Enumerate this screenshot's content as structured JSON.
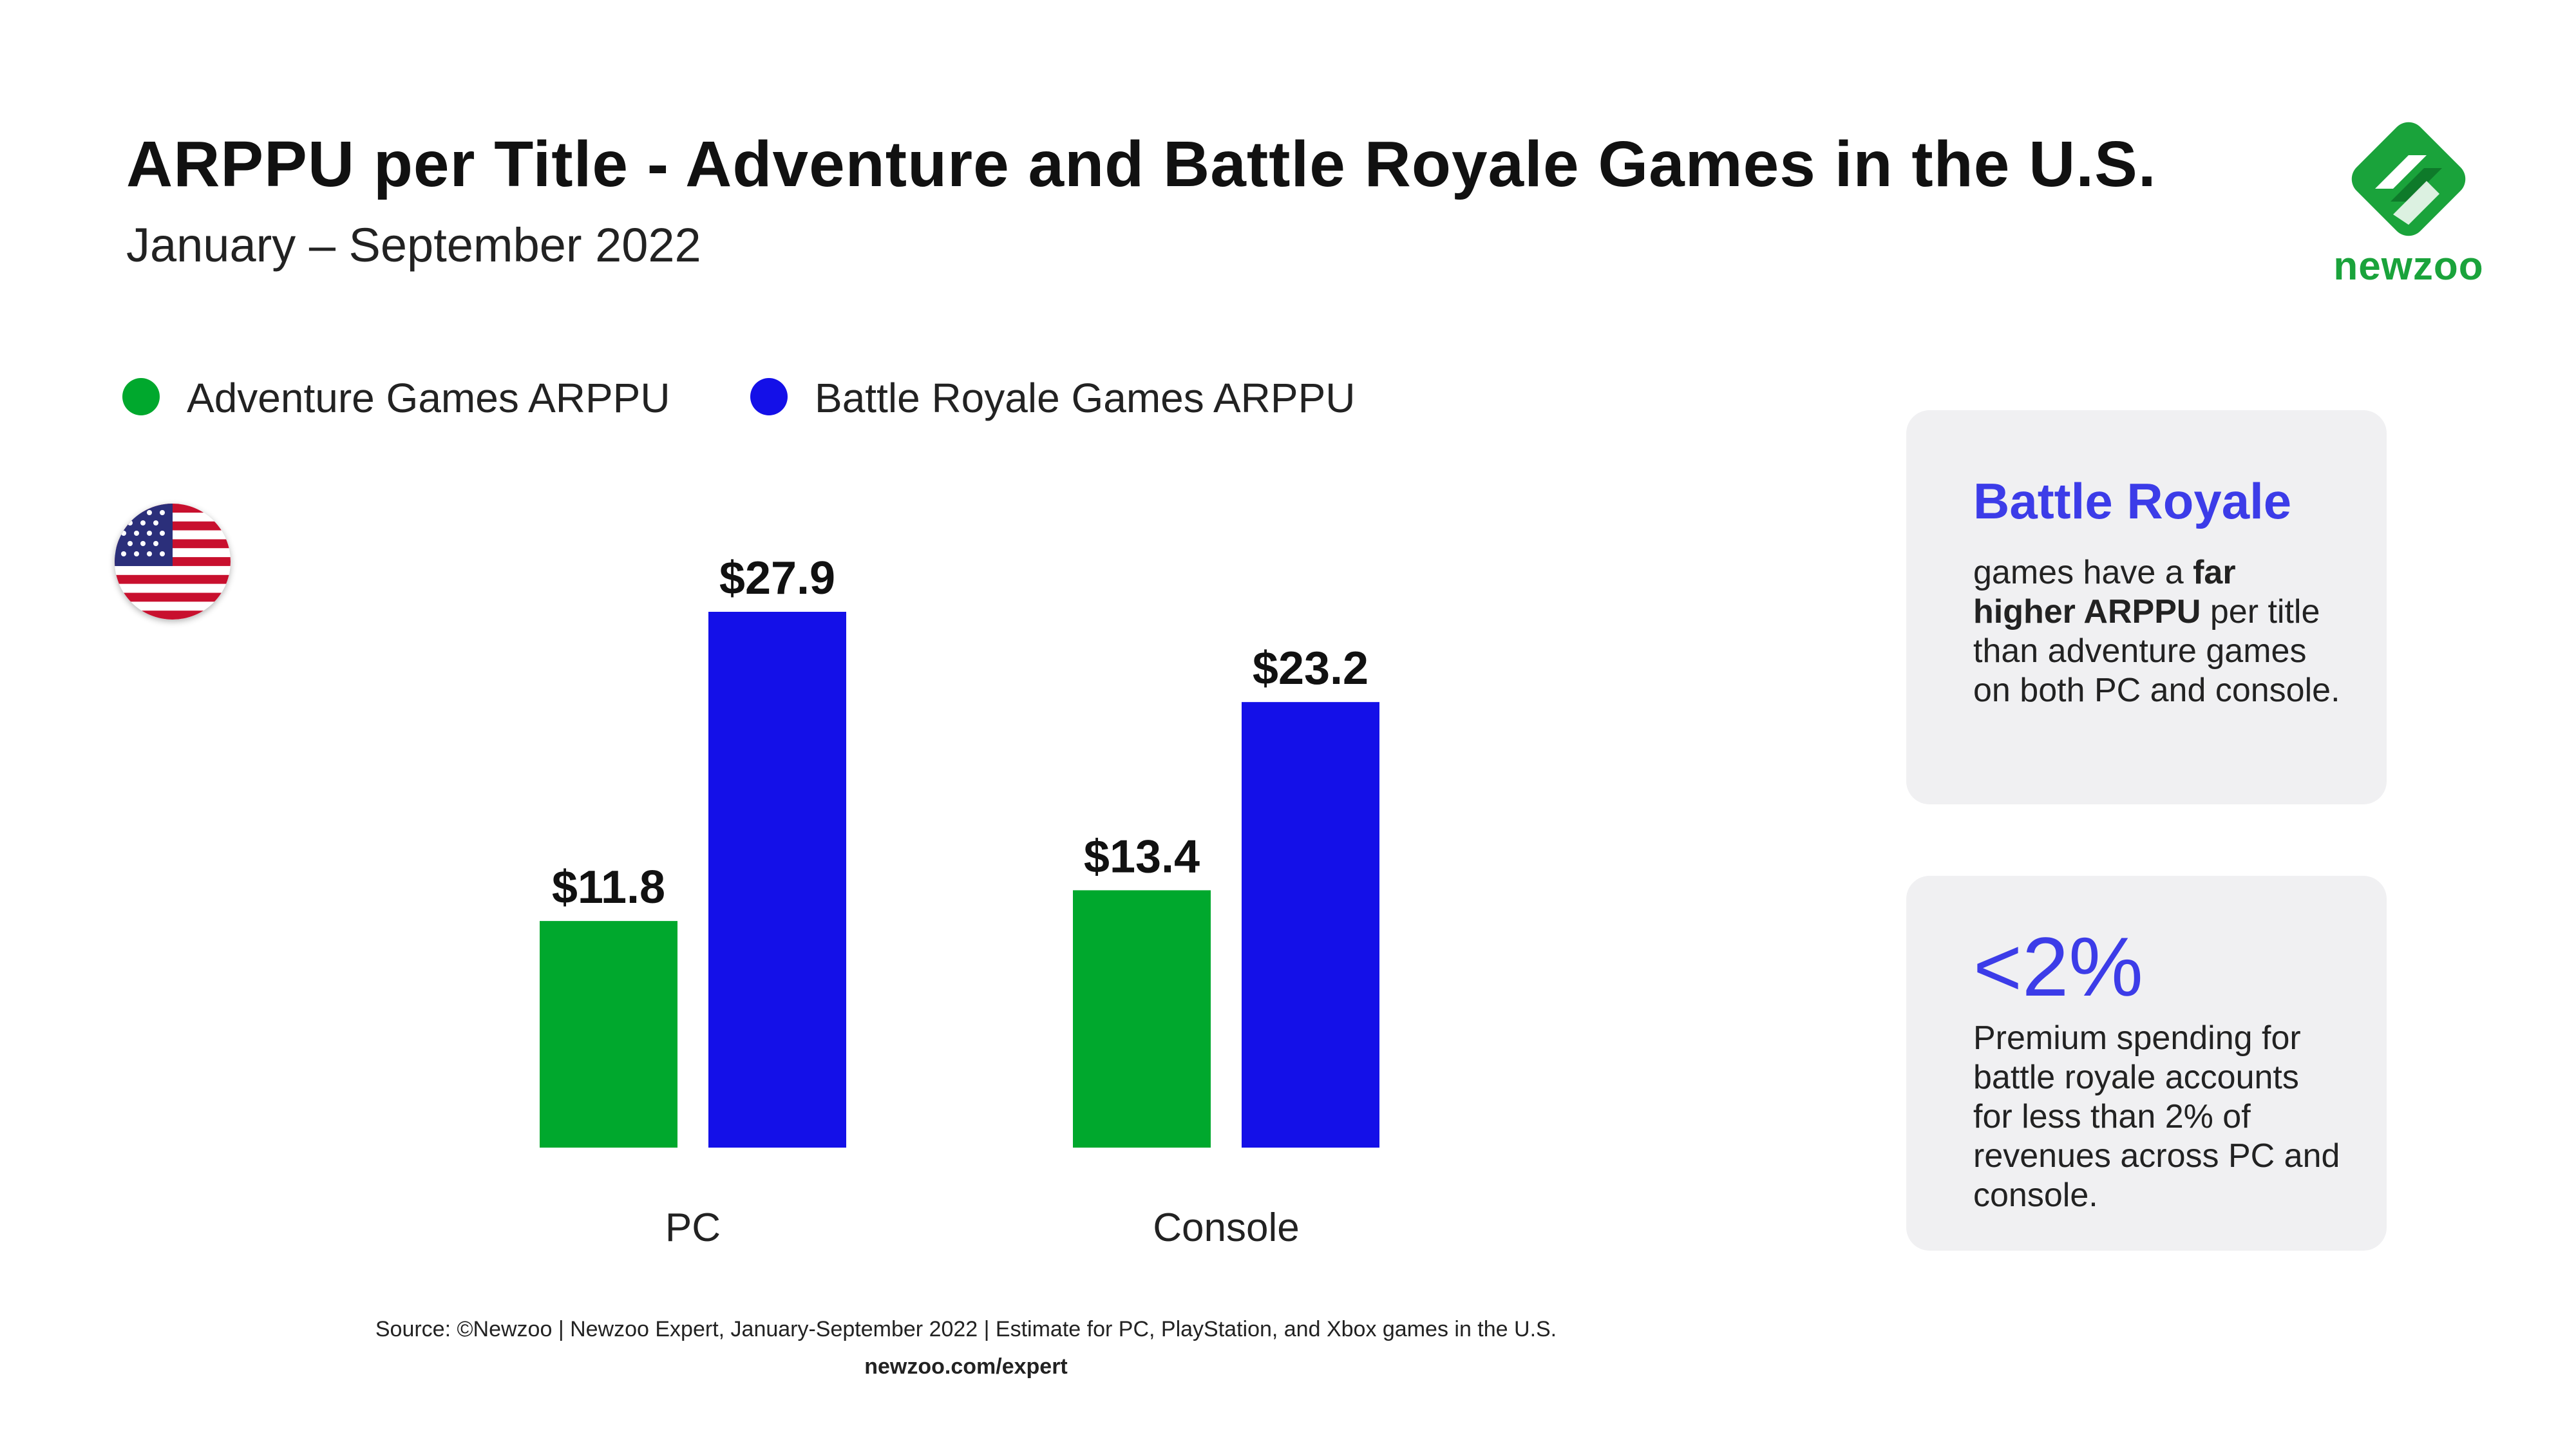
{
  "header": {
    "title": "ARPPU per Title - Adventure and Battle Royale Games in the U.S.",
    "subtitle": "January – September 2022"
  },
  "brand": {
    "logo_text": "newzoo",
    "color": "#1aa33b"
  },
  "legend": [
    {
      "label": "Adventure Games ARPPU",
      "color": "#00a82d"
    },
    {
      "label": "Battle Royale Games ARPPU",
      "color": "#1410e8"
    }
  ],
  "flag": {
    "icon": "us-flag-icon"
  },
  "chart_data": {
    "type": "bar",
    "categories": [
      "PC",
      "Console"
    ],
    "series": [
      {
        "name": "Adventure Games ARPPU",
        "values": [
          11.8,
          13.4
        ],
        "labels": [
          "$11.8",
          "$13.4"
        ],
        "color": "#00a82d"
      },
      {
        "name": "Battle Royale Games ARPPU",
        "values": [
          27.9,
          23.2
        ],
        "labels": [
          "$27.9",
          "$23.2"
        ],
        "color": "#1410e8"
      }
    ],
    "title": "ARPPU per Title - Adventure and Battle Royale Games in the U.S.",
    "xlabel": "",
    "ylabel": "",
    "ylim": [
      0,
      27.9
    ],
    "grid": false,
    "legend_position": "top-left"
  },
  "cards": {
    "battle_royale": {
      "heading": "Battle Royale",
      "body_1": "games have a ",
      "body_bold": "far higher ARPPU",
      "body_2": " per title than adventure games on both PC and console."
    },
    "premium": {
      "heading": "<2%",
      "body": "Premium spending for battle royale accounts for less than 2% of revenues across PC and console."
    }
  },
  "footer": {
    "source": "Source: ©Newzoo | Newzoo Expert, January-September 2022 | Estimate for PC, PlayStation, and Xbox games in the U.S.",
    "url": "newzoo.com/expert"
  }
}
